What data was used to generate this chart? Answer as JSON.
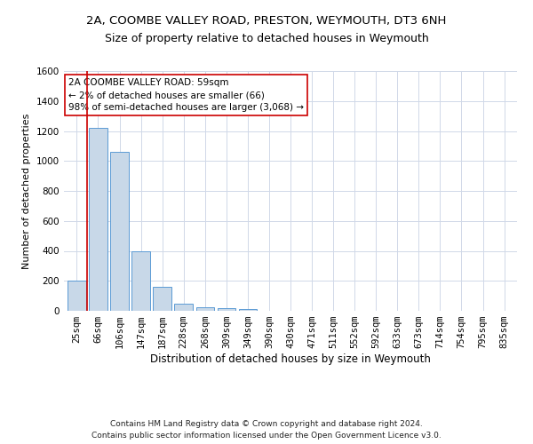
{
  "title1": "2A, COOMBE VALLEY ROAD, PRESTON, WEYMOUTH, DT3 6NH",
  "title2": "Size of property relative to detached houses in Weymouth",
  "xlabel": "Distribution of detached houses by size in Weymouth",
  "ylabel": "Number of detached properties",
  "categories": [
    "25sqm",
    "66sqm",
    "106sqm",
    "147sqm",
    "187sqm",
    "228sqm",
    "268sqm",
    "309sqm",
    "349sqm",
    "390sqm",
    "430sqm",
    "471sqm",
    "511sqm",
    "552sqm",
    "592sqm",
    "633sqm",
    "673sqm",
    "714sqm",
    "754sqm",
    "795sqm",
    "835sqm"
  ],
  "values": [
    200,
    1220,
    1060,
    400,
    160,
    50,
    25,
    15,
    10,
    0,
    0,
    0,
    0,
    0,
    0,
    0,
    0,
    0,
    0,
    0,
    0
  ],
  "bar_color": "#c8d8e8",
  "bar_edge_color": "#5b9bd5",
  "highlight_color": "#cc0000",
  "annotation_line1": "2A COOMBE VALLEY ROAD: 59sqm",
  "annotation_line2": "← 2% of detached houses are smaller (66)",
  "annotation_line3": "98% of semi-detached houses are larger (3,068) →",
  "annotation_box_color": "#ffffff",
  "annotation_box_edge": "#cc0000",
  "ylim": [
    0,
    1600
  ],
  "yticks": [
    0,
    200,
    400,
    600,
    800,
    1000,
    1200,
    1400,
    1600
  ],
  "footer1": "Contains HM Land Registry data © Crown copyright and database right 2024.",
  "footer2": "Contains public sector information licensed under the Open Government Licence v3.0.",
  "title1_fontsize": 9.5,
  "title2_fontsize": 9,
  "xlabel_fontsize": 8.5,
  "ylabel_fontsize": 8,
  "tick_fontsize": 7.5,
  "annotation_fontsize": 7.5,
  "footer_fontsize": 6.5,
  "background_color": "#ffffff",
  "grid_color": "#d0d8e8"
}
